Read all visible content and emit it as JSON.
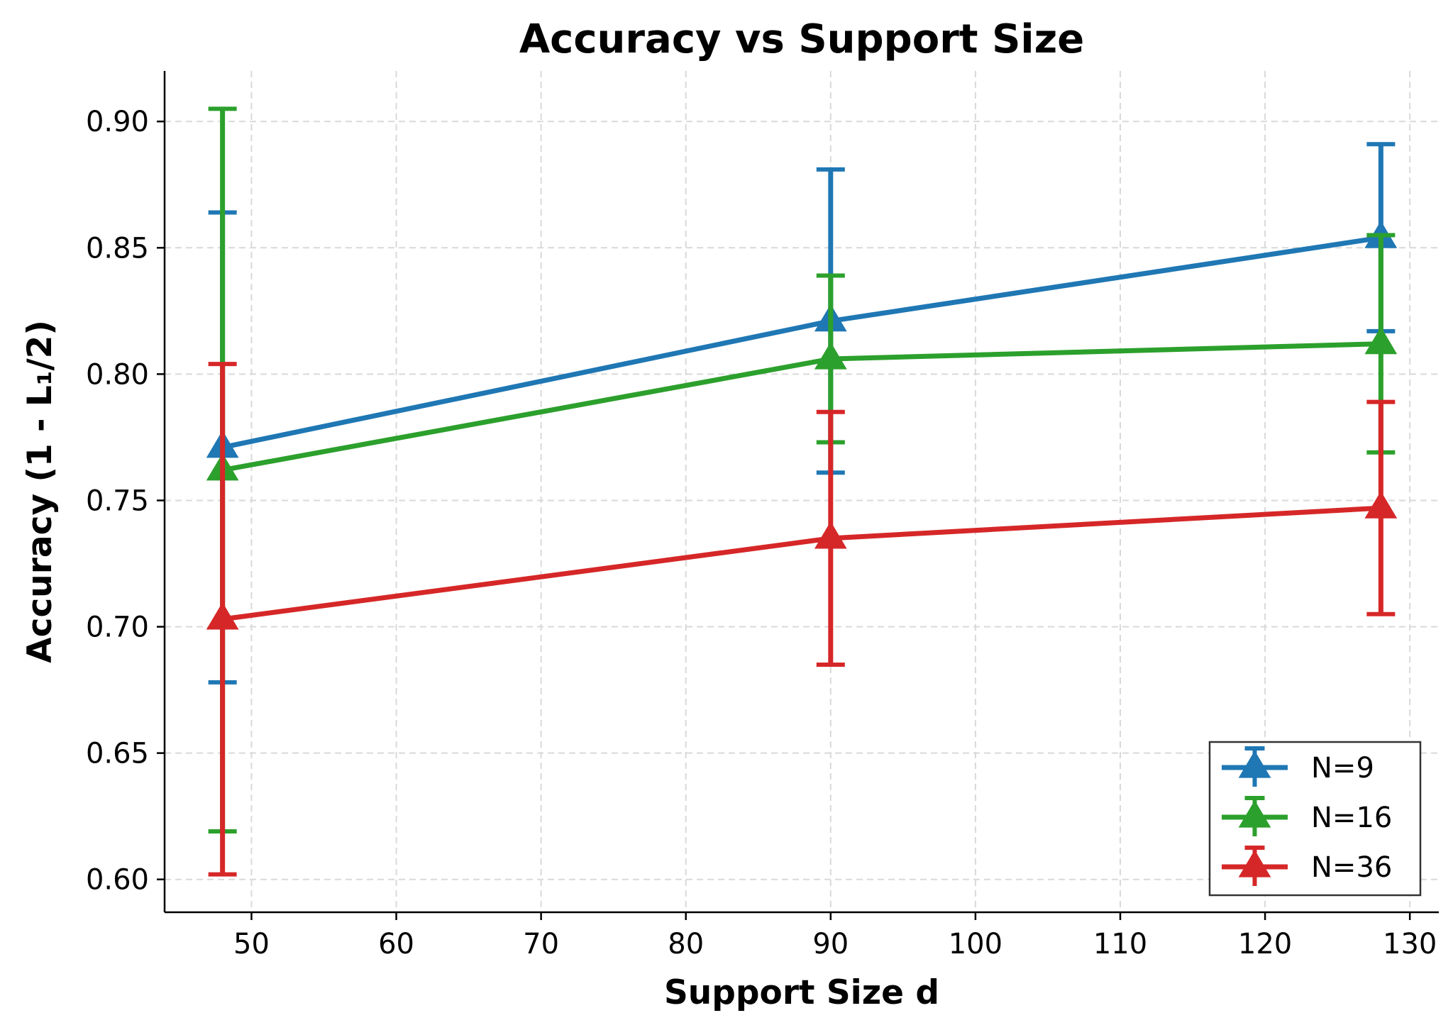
{
  "chart_data": {
    "type": "line",
    "title": "Accuracy vs Support Size",
    "xlabel": "Support Size d",
    "ylabel": "Accuracy (1 - L₁/2)",
    "x": [
      48,
      90,
      128
    ],
    "xlim": [
      44,
      132
    ],
    "ylim": [
      0.587,
      0.92
    ],
    "xticks": [
      50,
      60,
      70,
      80,
      90,
      100,
      110,
      120,
      130
    ],
    "yticks": [
      0.6,
      0.65,
      0.7,
      0.75,
      0.8,
      0.85,
      0.9
    ],
    "xtick_labels": [
      "50",
      "60",
      "70",
      "80",
      "90",
      "100",
      "110",
      "120",
      "130"
    ],
    "ytick_labels": [
      "0.60",
      "0.65",
      "0.70",
      "0.75",
      "0.80",
      "0.85",
      "0.90"
    ],
    "grid": true,
    "legend_position": "bottom-right",
    "series": [
      {
        "name": "N=9",
        "color": "#1f77b4",
        "values": [
          0.771,
          0.821,
          0.854
        ],
        "errors": [
          0.093,
          0.06,
          0.037
        ]
      },
      {
        "name": "N=16",
        "color": "#2ca02c",
        "values": [
          0.762,
          0.806,
          0.812
        ],
        "errors": [
          0.143,
          0.033,
          0.043
        ]
      },
      {
        "name": "N=36",
        "color": "#d62728",
        "values": [
          0.703,
          0.735,
          0.747
        ],
        "errors": [
          0.101,
          0.05,
          0.042
        ]
      }
    ]
  }
}
